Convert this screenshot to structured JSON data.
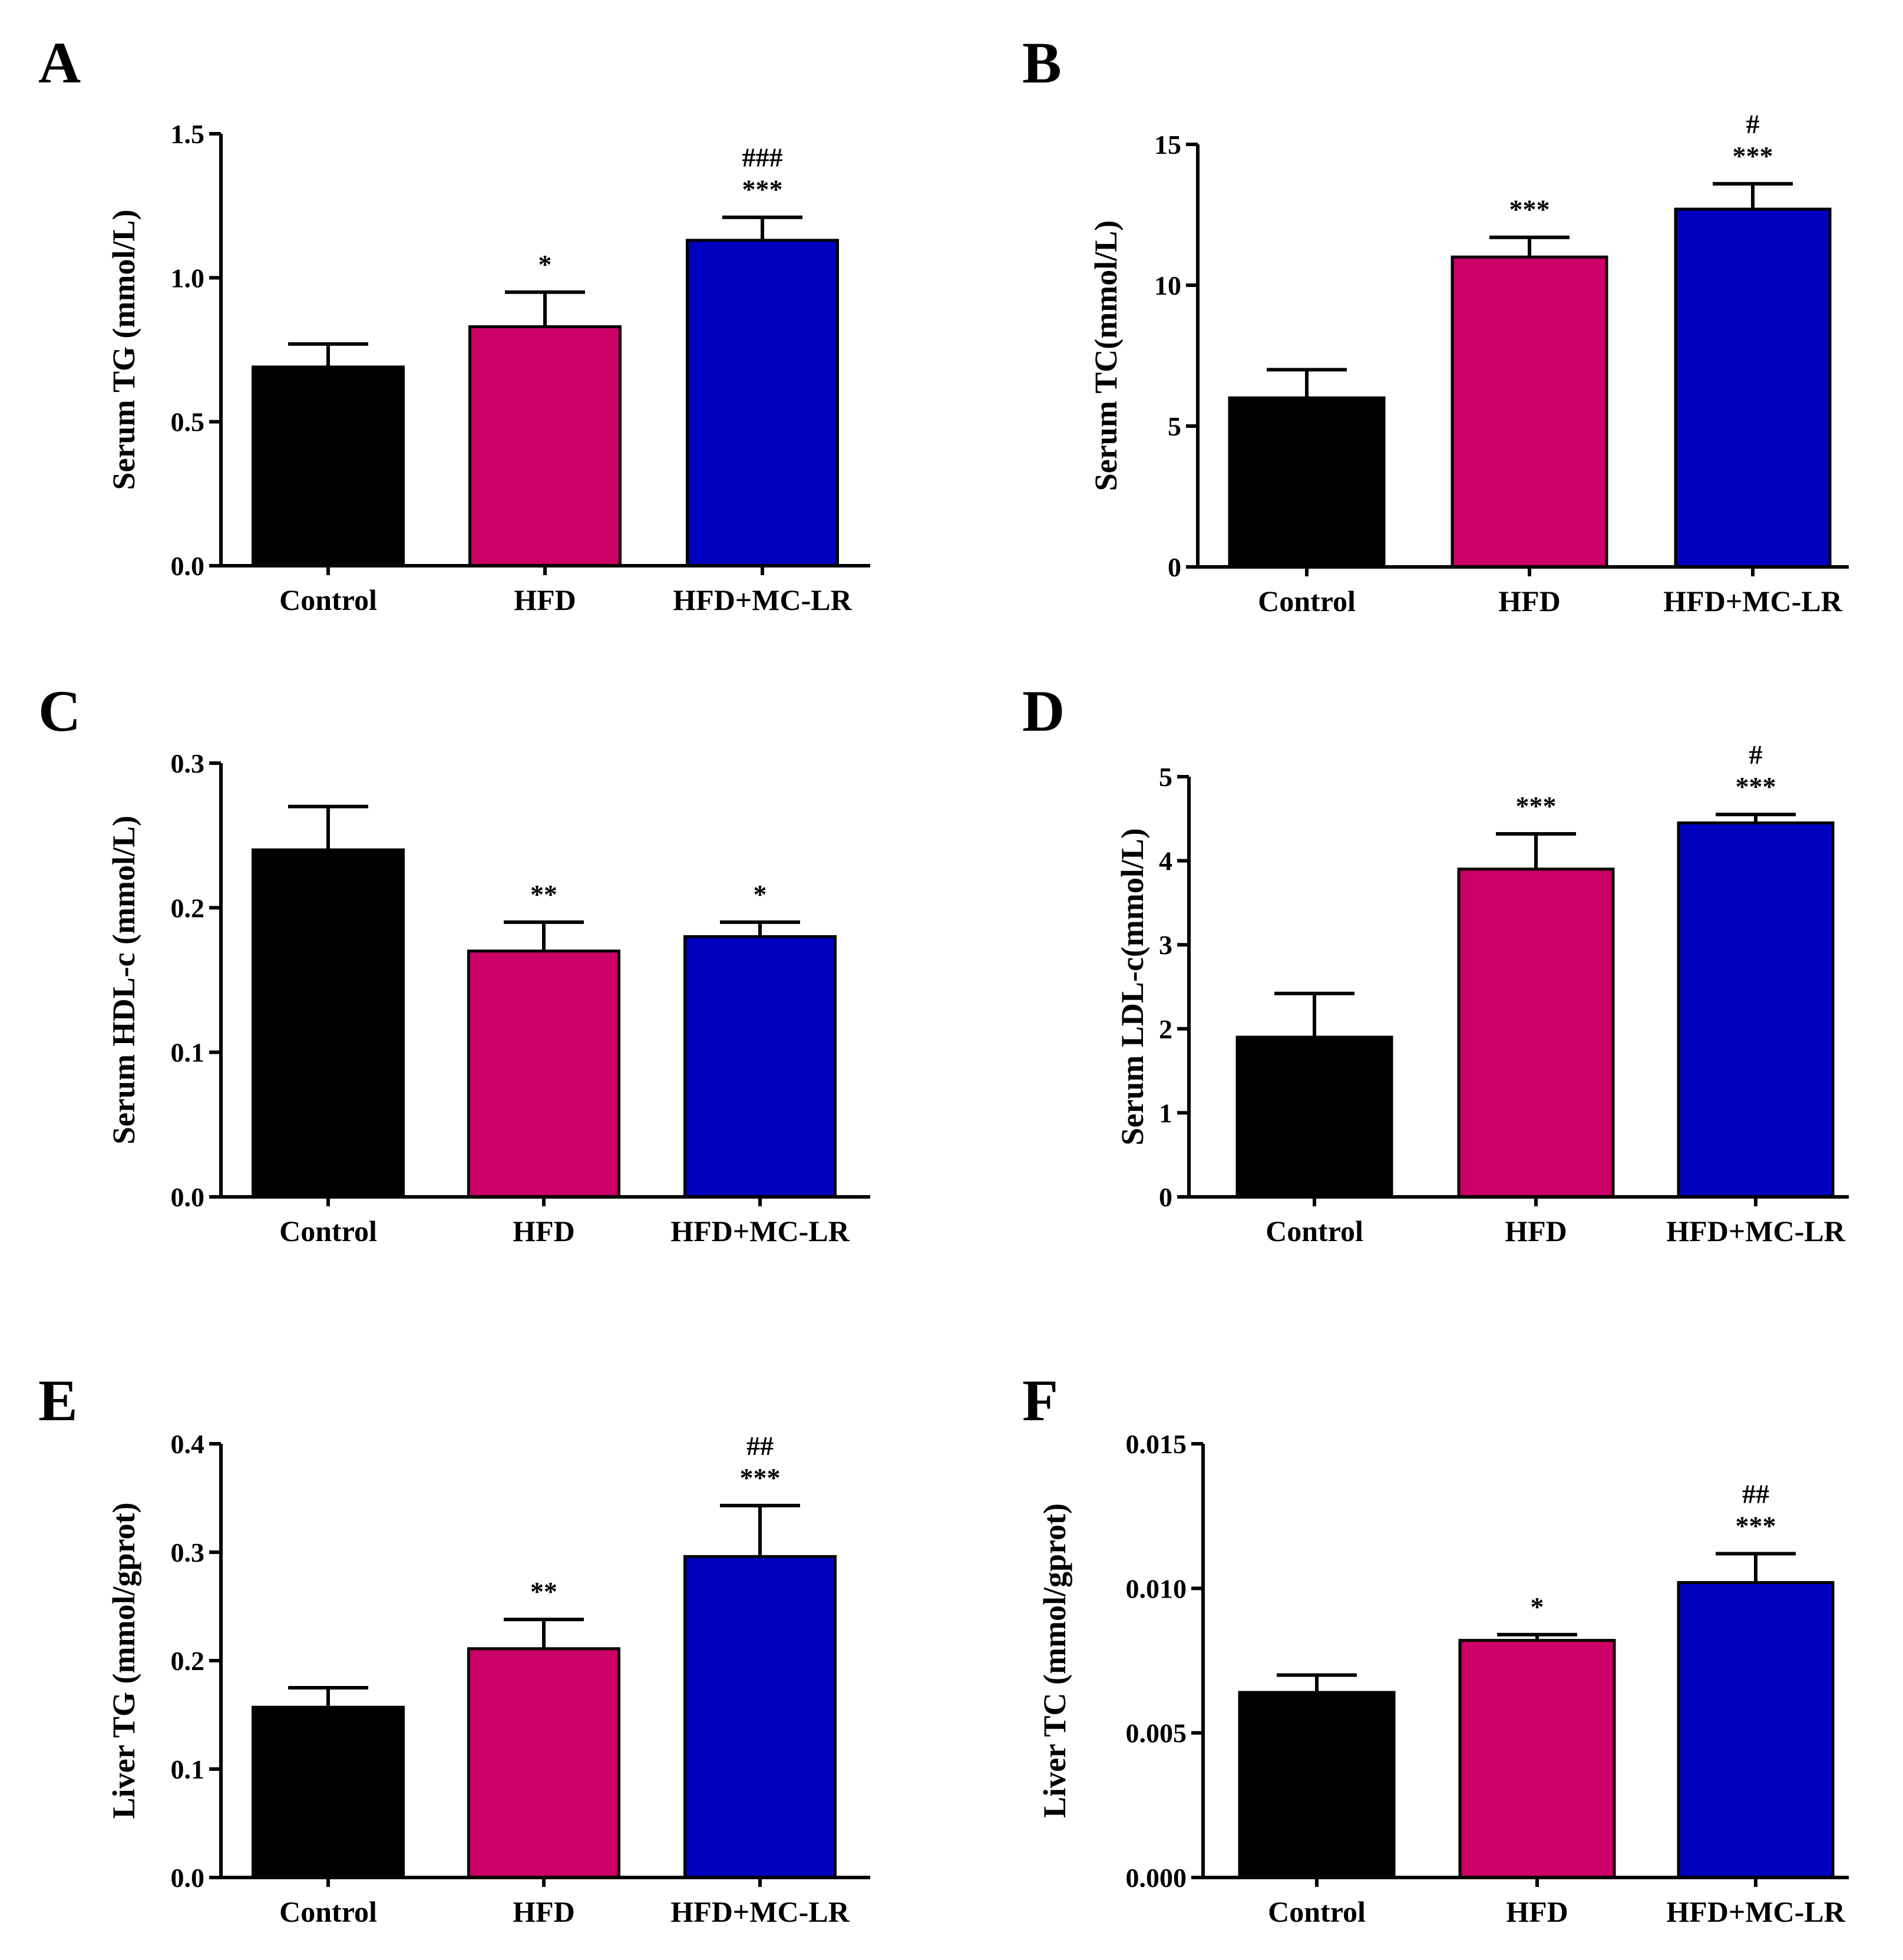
{
  "chart_data": [
    {
      "panel": "A",
      "type": "bar",
      "categories": [
        "Control",
        "HFD",
        "HFD+MC-LR"
      ],
      "values": [
        0.69,
        0.83,
        1.13
      ],
      "errors": [
        0.08,
        0.12,
        0.08
      ],
      "colors": [
        "#000000",
        "#cc0066",
        "#0000bf"
      ],
      "ylabel": "Serum TG (mmol/L)",
      "ylim": [
        0,
        1.5
      ],
      "yticks": [
        "0.0",
        "0.5",
        "1.0",
        "1.5"
      ],
      "annotations": [
        [
          "",
          ""
        ],
        [
          "",
          "*"
        ],
        [
          "###",
          "***"
        ]
      ]
    },
    {
      "panel": "B",
      "type": "bar",
      "categories": [
        "Control",
        "HFD",
        "HFD+MC-LR"
      ],
      "values": [
        6.0,
        11.0,
        12.7
      ],
      "errors": [
        1.0,
        0.7,
        0.9
      ],
      "colors": [
        "#000000",
        "#cc0066",
        "#0000bf"
      ],
      "ylabel": "Serum TC(mmol/L)",
      "ylim": [
        0,
        15
      ],
      "yticks": [
        "0",
        "5",
        "10",
        "15"
      ],
      "annotations": [
        [
          "",
          ""
        ],
        [
          "",
          "***"
        ],
        [
          "#",
          "***"
        ]
      ]
    },
    {
      "panel": "C",
      "type": "bar",
      "categories": [
        "Control",
        "HFD",
        "HFD+MC-LR"
      ],
      "values": [
        0.24,
        0.17,
        0.18
      ],
      "errors": [
        0.03,
        0.02,
        0.01
      ],
      "colors": [
        "#000000",
        "#cc0066",
        "#0000bf"
      ],
      "ylabel": "Serum HDL-c (mmol/L)",
      "ylim": [
        0,
        0.3
      ],
      "yticks": [
        "0.0",
        "0.1",
        "0.2",
        "0.3"
      ],
      "annotations": [
        [
          "",
          ""
        ],
        [
          "",
          "**"
        ],
        [
          "",
          "*"
        ]
      ]
    },
    {
      "panel": "D",
      "type": "bar",
      "categories": [
        "Control",
        "HFD",
        "HFD+MC-LR"
      ],
      "values": [
        1.9,
        3.9,
        4.45
      ],
      "errors": [
        0.52,
        0.42,
        0.1
      ],
      "colors": [
        "#000000",
        "#cc0066",
        "#0000bf"
      ],
      "ylabel": "Serum LDL-c(mmol/L)",
      "ylim": [
        0,
        5
      ],
      "yticks": [
        "0",
        "1",
        "2",
        "3",
        "4",
        "5"
      ],
      "annotations": [
        [
          "",
          ""
        ],
        [
          "",
          "***"
        ],
        [
          "#",
          "***"
        ]
      ]
    },
    {
      "panel": "E",
      "type": "bar",
      "categories": [
        "Control",
        "HFD",
        "HFD+MC-LR"
      ],
      "values": [
        0.157,
        0.211,
        0.296
      ],
      "errors": [
        0.018,
        0.027,
        0.047
      ],
      "colors": [
        "#000000",
        "#cc0066",
        "#0000bf"
      ],
      "ylabel": "Liver TG (mmol/gprot)",
      "ylim": [
        0,
        0.4
      ],
      "yticks": [
        "0.0",
        "0.1",
        "0.2",
        "0.3",
        "0.4"
      ],
      "annotations": [
        [
          "",
          ""
        ],
        [
          "",
          "**"
        ],
        [
          "##",
          "***"
        ]
      ]
    },
    {
      "panel": "F",
      "type": "bar",
      "categories": [
        "Control",
        "HFD",
        "HFD+MC-LR"
      ],
      "values": [
        0.0064,
        0.0082,
        0.0102
      ],
      "errors": [
        0.0006,
        0.0002,
        0.001
      ],
      "colors": [
        "#000000",
        "#cc0066",
        "#0000bf"
      ],
      "ylabel": "Liver TC (mmol/gprot)",
      "ylim": [
        0,
        0.015
      ],
      "yticks": [
        "0.000",
        "0.005",
        "0.010",
        "0.015"
      ],
      "annotations": [
        [
          "",
          ""
        ],
        [
          "",
          "*"
        ],
        [
          "##",
          "***"
        ]
      ]
    }
  ]
}
